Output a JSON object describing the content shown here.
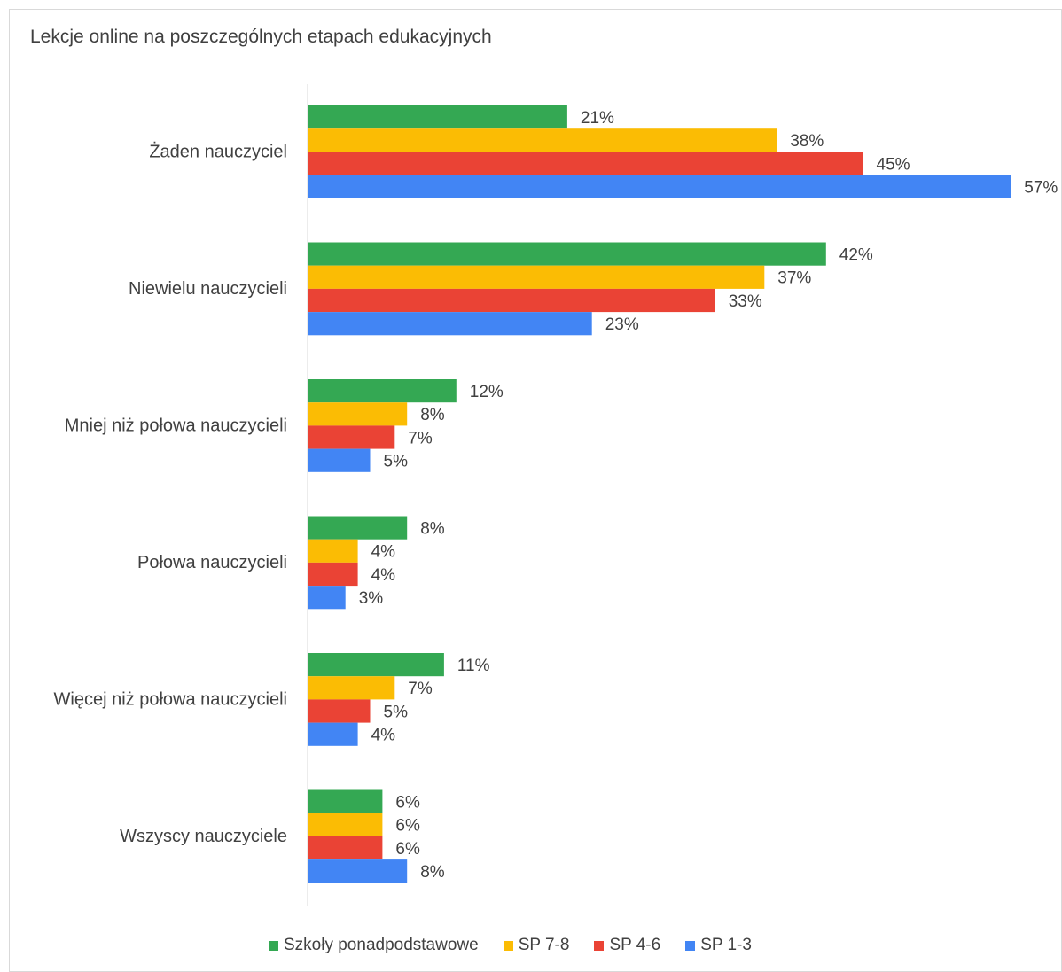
{
  "chart_data": {
    "type": "bar",
    "orientation": "horizontal",
    "title": "Lekcje online na poszczególnych etapach edukacyjnych",
    "categories": [
      "Żaden nauczyciel",
      "Niewielu nauczycieli",
      "Mniej niż połowa nauczycieli",
      "Połowa nauczycieli",
      "Więcej niż połowa nauczycieli",
      "Wszyscy nauczyciele"
    ],
    "series": [
      {
        "name": "Szkoły ponadpodstawowe",
        "color": "#34a853",
        "values": [
          21,
          42,
          12,
          8,
          11,
          6
        ]
      },
      {
        "name": "SP 7-8",
        "color": "#fbbc04",
        "values": [
          38,
          37,
          8,
          4,
          7,
          6
        ]
      },
      {
        "name": "SP 4-6",
        "color": "#ea4335",
        "values": [
          45,
          33,
          7,
          4,
          5,
          6
        ]
      },
      {
        "name": "SP 1-3",
        "color": "#4285f4",
        "values": [
          57,
          23,
          5,
          3,
          4,
          8
        ]
      }
    ],
    "value_suffix": "%",
    "xlim": [
      0,
      57
    ],
    "legend_position": "bottom",
    "grid": false
  }
}
